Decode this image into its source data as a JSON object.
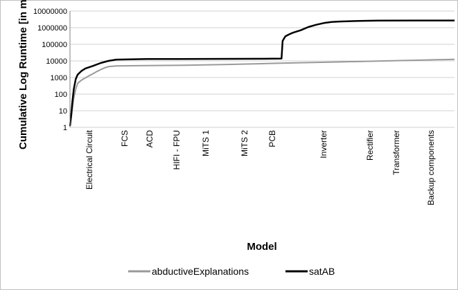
{
  "chart_data": {
    "type": "line",
    "title": "",
    "xlabel": "Model",
    "ylabel": "Cumulative Log Runtime [in ms]",
    "yscale": "log",
    "ylim": [
      1,
      10000000
    ],
    "y_ticks": [
      "1",
      "10",
      "100",
      "1000",
      "10000",
      "100000",
      "1000000",
      "10000000"
    ],
    "categories": [
      "Electrical Circuit",
      "FCS",
      "ACD",
      "HIFI - FPU",
      "MiTS 1",
      "MiTS 2",
      "PCB",
      "Inverter",
      "Rectifier",
      "Transformer",
      "Backup components"
    ],
    "legend_position": "bottom",
    "grid": "horizontal",
    "series": [
      {
        "name": "abductiveExplanations",
        "color": "#999999",
        "points": [
          [
            0,
            1.2
          ],
          [
            0.005,
            8
          ],
          [
            0.01,
            60
          ],
          [
            0.015,
            200
          ],
          [
            0.02,
            450
          ],
          [
            0.03,
            700
          ],
          [
            0.04,
            950
          ],
          [
            0.05,
            1300
          ],
          [
            0.06,
            1700
          ],
          [
            0.07,
            2300
          ],
          [
            0.08,
            3000
          ],
          [
            0.09,
            3800
          ],
          [
            0.1,
            4500
          ],
          [
            0.12,
            5000
          ],
          [
            0.2,
            5200
          ],
          [
            0.3,
            5500
          ],
          [
            0.4,
            6000
          ],
          [
            0.5,
            6800
          ],
          [
            0.55,
            7300
          ],
          [
            0.6,
            7800
          ],
          [
            0.7,
            8700
          ],
          [
            0.8,
            9800
          ],
          [
            0.9,
            11000
          ],
          [
            1.0,
            12500
          ]
        ]
      },
      {
        "name": "satAB",
        "color": "#000000",
        "points": [
          [
            0,
            1.2
          ],
          [
            0.003,
            5
          ],
          [
            0.006,
            30
          ],
          [
            0.01,
            200
          ],
          [
            0.015,
            800
          ],
          [
            0.02,
            1500
          ],
          [
            0.03,
            2500
          ],
          [
            0.04,
            3500
          ],
          [
            0.06,
            5000
          ],
          [
            0.08,
            7500
          ],
          [
            0.1,
            10000
          ],
          [
            0.12,
            12000
          ],
          [
            0.2,
            13000
          ],
          [
            0.35,
            13200
          ],
          [
            0.5,
            13500
          ],
          [
            0.55,
            13800
          ],
          [
            0.553,
            160000
          ],
          [
            0.56,
            300000
          ],
          [
            0.57,
            400000
          ],
          [
            0.58,
            500000
          ],
          [
            0.6,
            700000
          ],
          [
            0.62,
            1100000
          ],
          [
            0.64,
            1500000
          ],
          [
            0.66,
            1900000
          ],
          [
            0.68,
            2200000
          ],
          [
            0.7,
            2350000
          ],
          [
            0.75,
            2550000
          ],
          [
            0.8,
            2650000
          ],
          [
            0.9,
            2700000
          ],
          [
            1.0,
            2700000
          ]
        ]
      }
    ]
  }
}
